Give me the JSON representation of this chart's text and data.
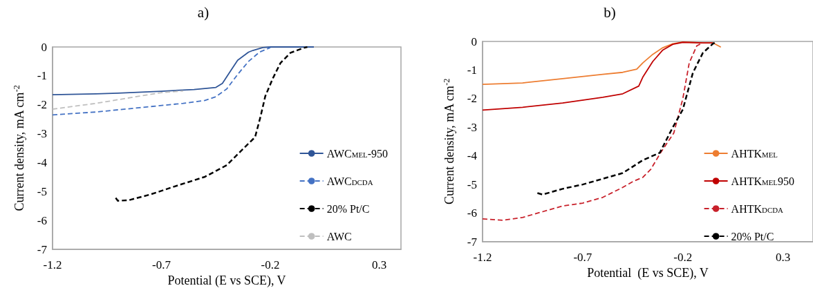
{
  "chart_data": [
    {
      "type": "line",
      "title": "a)",
      "xlabel": "Potential (E vs SCE), V",
      "ylabel": "Current density, mA cm$^{-2}$",
      "xlim": [
        -1.2,
        0.4
      ],
      "xticks": [
        -1.2,
        -0.7,
        -0.2,
        0.3
      ],
      "ylim": [
        -7,
        0
      ],
      "yticks": [
        -7,
        -6,
        -5,
        -4,
        -3,
        -2,
        -1,
        0
      ],
      "grid": false,
      "legend": "right",
      "marker": "none",
      "series": [
        {
          "name": "AWC$_{MEL}$-950",
          "color": "#2f5597",
          "line_style": "solid",
          "x": [
            -1.2,
            -1.0,
            -0.9,
            -0.7,
            -0.55,
            -0.45,
            -0.42,
            -0.38,
            -0.35,
            -0.3,
            -0.28,
            -0.235,
            -0.2,
            -0.1,
            0.0
          ],
          "values": [
            -1.65,
            -1.62,
            -1.6,
            -1.53,
            -1.47,
            -1.4,
            -1.26,
            -0.8,
            -0.46,
            -0.18,
            -0.12,
            -0.02,
            0,
            0,
            0
          ]
        },
        {
          "name": "AWC$_{DCDA}$",
          "color": "#4472c4",
          "line_style": "dashed",
          "x": [
            -1.2,
            -1.0,
            -0.8,
            -0.6,
            -0.5,
            -0.45,
            -0.4,
            -0.35,
            -0.3,
            -0.25,
            -0.2
          ],
          "values": [
            -2.35,
            -2.25,
            -2.1,
            -1.95,
            -1.85,
            -1.72,
            -1.45,
            -0.95,
            -0.5,
            -0.18,
            -0.02
          ]
        },
        {
          "name": "20% Pt/C",
          "color": "#000000",
          "line_style": "dashed",
          "x": [
            -0.91,
            -0.9,
            -0.85,
            -0.75,
            -0.65,
            -0.5,
            -0.4,
            -0.33,
            -0.27,
            -0.245,
            -0.223,
            -0.188,
            -0.153,
            -0.107,
            -0.05,
            -0.03
          ],
          "values": [
            -5.22,
            -5.32,
            -5.3,
            -5.1,
            -4.85,
            -4.49,
            -4.09,
            -3.56,
            -3.12,
            -2.41,
            -1.7,
            -1.08,
            -0.55,
            -0.2,
            -0.04,
            0
          ]
        },
        {
          "name": "AWC",
          "color": "#bfbfbf",
          "line_style": "dashed",
          "x": [
            -1.2,
            -1.0,
            -0.8,
            -0.7,
            -0.6
          ],
          "values": [
            -2.15,
            -1.95,
            -1.7,
            -1.58,
            -1.52
          ]
        }
      ]
    },
    {
      "type": "line",
      "title": "b)",
      "xlabel": "Potential  (E vs SCE), V",
      "ylabel": "Current density, mA cm$^{-2}$",
      "xlim": [
        -1.2,
        0.45
      ],
      "xticks": [
        -1.2,
        -0.7,
        -0.2,
        0.3
      ],
      "ylim": [
        -7,
        0
      ],
      "yticks": [
        -7,
        -6,
        -5,
        -4,
        -3,
        -2,
        -1,
        0
      ],
      "grid": false,
      "legend": "right",
      "marker": "none",
      "series": [
        {
          "name": "AHTK$_{MEL}$",
          "color": "#ed7d31",
          "line_style": "solid",
          "x": [
            -1.2,
            -1.0,
            -0.8,
            -0.6,
            -0.5,
            -0.43,
            -0.4,
            -0.35,
            -0.3,
            -0.25,
            -0.2,
            -0.1,
            -0.05,
            -0.01
          ],
          "values": [
            -1.5,
            -1.45,
            -1.3,
            -1.15,
            -1.08,
            -0.97,
            -0.75,
            -0.45,
            -0.22,
            -0.08,
            -0.02,
            -0.05,
            -0.05,
            -0.2
          ]
        },
        {
          "name": "AHTK$_{MEL}$950",
          "color": "#c00000",
          "line_style": "solid",
          "x": [
            -1.2,
            -1.0,
            -0.8,
            -0.6,
            -0.5,
            -0.42,
            -0.4,
            -0.35,
            -0.3,
            -0.25,
            -0.2,
            -0.1,
            -0.05
          ],
          "values": [
            -2.4,
            -2.3,
            -2.15,
            -1.95,
            -1.83,
            -1.56,
            -1.25,
            -0.7,
            -0.3,
            -0.1,
            -0.03,
            -0.05,
            -0.05
          ]
        },
        {
          "name": "AHTK$_{DCDA}$",
          "color": "#c8202a",
          "line_style": "dashed",
          "x": [
            -1.2,
            -1.1,
            -1.0,
            -0.9,
            -0.8,
            -0.7,
            -0.6,
            -0.5,
            -0.45,
            -0.4,
            -0.36,
            -0.31,
            -0.245,
            -0.2,
            -0.168,
            -0.13,
            -0.1
          ],
          "values": [
            -6.2,
            -6.25,
            -6.15,
            -5.95,
            -5.75,
            -5.65,
            -5.45,
            -5.1,
            -4.9,
            -4.75,
            -4.47,
            -3.88,
            -3.2,
            -2.0,
            -0.75,
            -0.15,
            -0.05
          ]
        },
        {
          "name": "20% Pt/C",
          "color": "#000000",
          "line_style": "dashed",
          "x": [
            -0.926,
            -0.9,
            -0.8,
            -0.7,
            -0.6,
            -0.5,
            -0.4,
            -0.315,
            -0.25,
            -0.2,
            -0.15,
            -0.1,
            -0.05,
            -0.03
          ],
          "values": [
            -5.3,
            -5.35,
            -5.15,
            -5.0,
            -4.8,
            -4.6,
            -4.15,
            -3.89,
            -3.0,
            -2.38,
            -1.1,
            -0.4,
            -0.08,
            0
          ]
        }
      ]
    }
  ]
}
